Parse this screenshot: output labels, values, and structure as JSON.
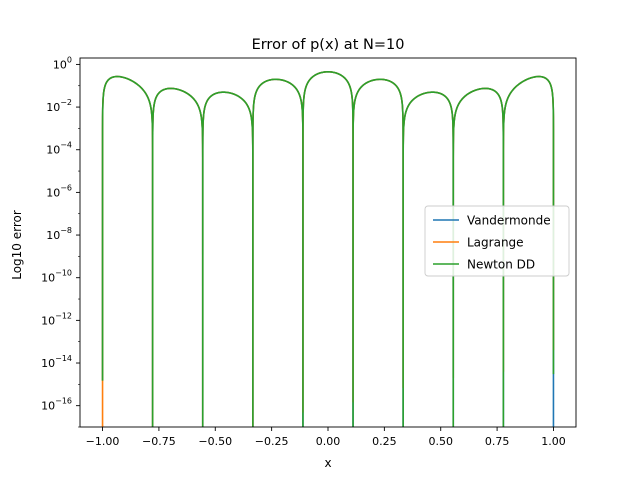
{
  "chart_data": {
    "type": "line",
    "title": "Error of p(x) at N=10",
    "xlabel": "x",
    "ylabel": "Log10 error",
    "y_scale": "log",
    "xlim": [
      -1.1,
      1.1
    ],
    "ylim": [
      1e-17,
      2
    ],
    "x_ticks": [
      -1.0,
      -0.75,
      -0.5,
      -0.25,
      0.0,
      0.25,
      0.5,
      0.75,
      1.0
    ],
    "x_tick_labels": [
      "−1.00",
      "−0.75",
      "−0.50",
      "−0.25",
      "0.00",
      "0.25",
      "0.50",
      "0.75",
      "1.00"
    ],
    "y_ticks": [
      1e-16,
      1e-14,
      1e-12,
      1e-10,
      1e-08,
      1e-06,
      0.0001,
      0.01,
      1
    ],
    "y_tick_labels": [
      {
        "base": "10",
        "exp": "−16"
      },
      {
        "base": "10",
        "exp": "−14"
      },
      {
        "base": "10",
        "exp": "−12"
      },
      {
        "base": "10",
        "exp": "−10"
      },
      {
        "base": "10",
        "exp": "−8"
      },
      {
        "base": "10",
        "exp": "−6"
      },
      {
        "base": "10",
        "exp": "−4"
      },
      {
        "base": "10",
        "exp": "−2"
      },
      {
        "base": "10",
        "exp": "0"
      }
    ],
    "grid": false,
    "legend_position": "center-right",
    "nodes": [
      -1.0,
      -0.7778,
      -0.5556,
      -0.3333,
      -0.1111,
      0.1111,
      0.3333,
      0.5556,
      0.7778,
      1.0
    ],
    "lobe_peaks": [
      0.27,
      0.075,
      0.05,
      0.2,
      0.45,
      0.2,
      0.05,
      0.075,
      0.27
    ],
    "series": [
      {
        "name": "Vandermonde",
        "color": "#1f77b4",
        "node_errors": [
          1.5e-15,
          1e-17,
          1e-17,
          1e-17,
          1e-17,
          1e-17,
          1e-17,
          1e-17,
          1e-17,
          1e-17
        ]
      },
      {
        "name": "Lagrange",
        "color": "#ff7f0e",
        "node_errors": [
          1e-17,
          1e-17,
          1e-17,
          1e-17,
          5e-17,
          1.5e-16,
          7e-16,
          2e-15,
          4e-15,
          4e-14
        ]
      },
      {
        "name": "Newton DD",
        "color": "#2ca02c",
        "node_errors": [
          1.5e-15,
          1e-17,
          1e-17,
          1e-17,
          1e-17,
          1e-17,
          1e-17,
          1e-17,
          1e-17,
          3e-15
        ]
      }
    ]
  }
}
